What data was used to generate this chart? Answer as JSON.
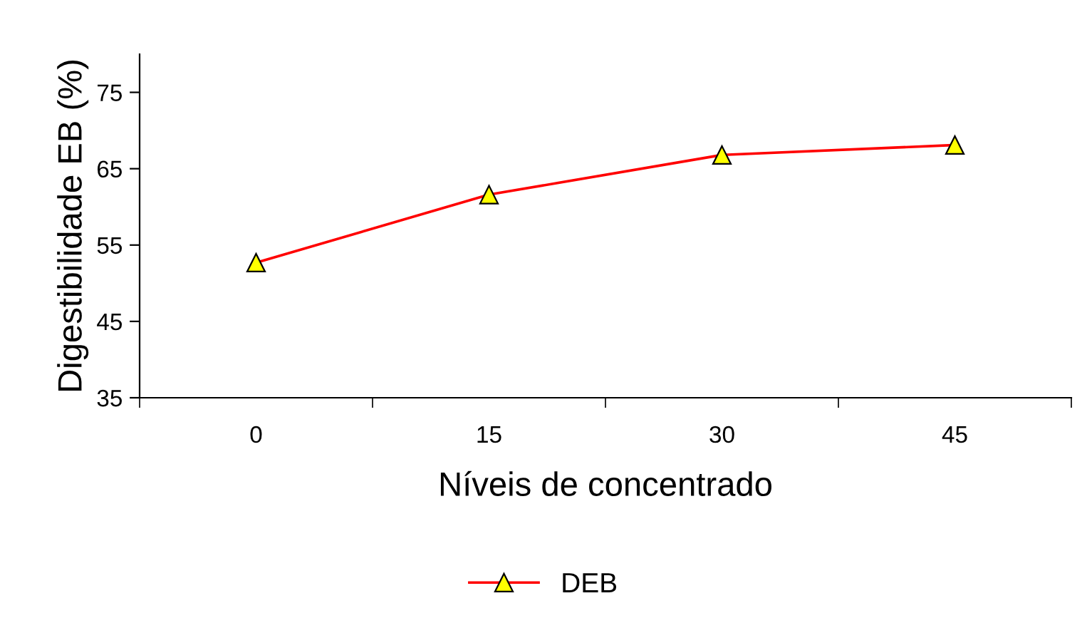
{
  "chart_data": {
    "type": "line",
    "xlabel": "Níveis de concentrado",
    "ylabel": "Digestibilidade EB (%)",
    "categories": [
      "0",
      "15",
      "30",
      "45"
    ],
    "series": [
      {
        "name": "DEB",
        "color": "#ff0000",
        "values": [
          52.7,
          61.6,
          66.8,
          68.1
        ]
      }
    ],
    "ylim": [
      35,
      80
    ],
    "yticks": [
      35,
      45,
      55,
      65,
      75
    ],
    "grid": false,
    "legend": "bottom",
    "marker": "triangle",
    "line_style": "solid"
  }
}
